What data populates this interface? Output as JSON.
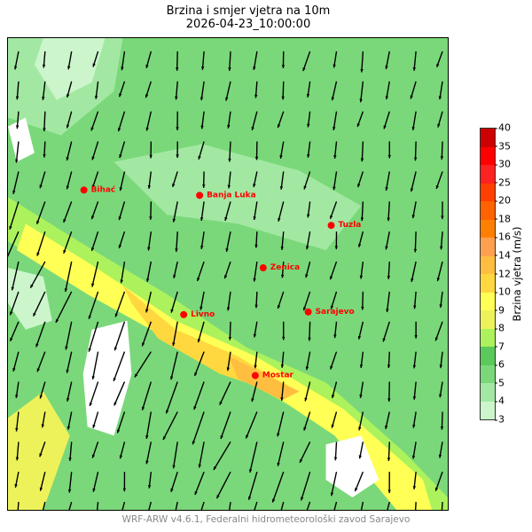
{
  "title": {
    "line1": "Brzina i smjer vjetra na 10m",
    "line2": "2026-04-23_10:00:00"
  },
  "colorbar": {
    "label": "Brzina vjetra (m/s)",
    "ticks": [
      "3",
      "4",
      "5",
      "6",
      "7",
      "8",
      "9",
      "10",
      "12",
      "14",
      "16",
      "18",
      "20",
      "25",
      "30",
      "35",
      "40"
    ],
    "colors": [
      "#ccf5cc",
      "#a2e8a2",
      "#7ad87a",
      "#5ac85a",
      "#acf25c",
      "#eef25a",
      "#ffff55",
      "#ffd840",
      "#ffbe40",
      "#ffa050",
      "#ff8000",
      "#ff6200",
      "#ff4000",
      "#ff2222",
      "#ff0000",
      "#cc0000"
    ]
  },
  "cities": [
    {
      "name": "Bihać"
    },
    {
      "name": "Banja Luka"
    },
    {
      "name": "Tuzla"
    },
    {
      "name": "Zenica"
    },
    {
      "name": "Livno"
    },
    {
      "name": "Sarajevo"
    },
    {
      "name": "Mostar"
    }
  ],
  "footer": "WRF-ARW v4.6.1, Federalni hidrometeorološki zavod Sarajevo"
}
